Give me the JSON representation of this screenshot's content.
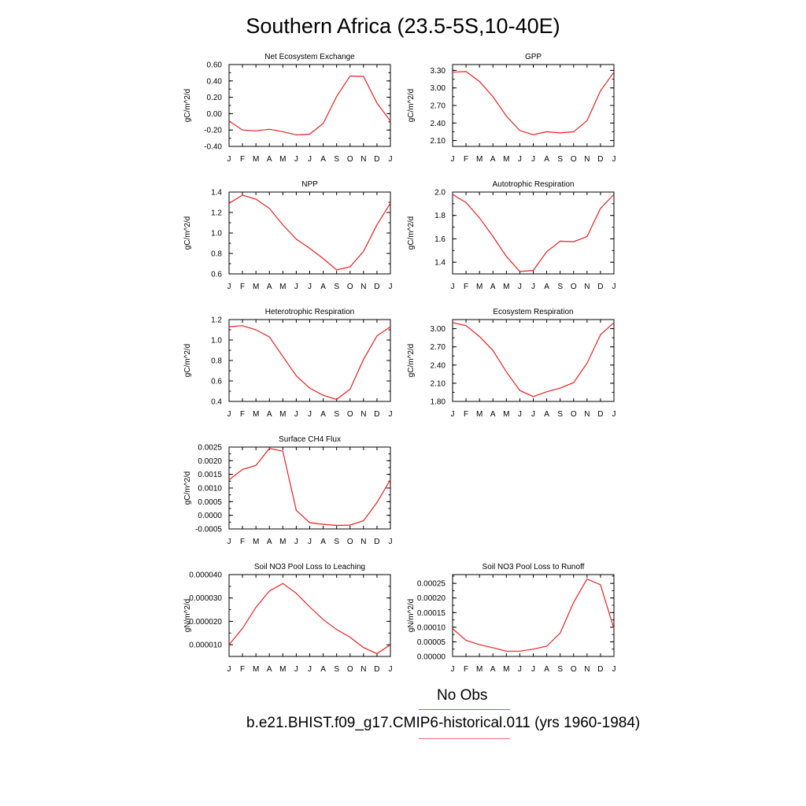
{
  "title": "Southern Africa (23.5-5S,10-40E)",
  "months": [
    "J",
    "F",
    "M",
    "A",
    "M",
    "J",
    "J",
    "A",
    "S",
    "O",
    "N",
    "D",
    "J"
  ],
  "legend": [
    {
      "label": "No Obs",
      "color": "#6d6df0"
    },
    {
      "label": "b.e21.BHIST.f09_g17.CMIP6-historical.011 (yrs 1960-1984)",
      "color": "#f06d6d"
    }
  ],
  "series_color": "#e82020",
  "chart_data": [
    {
      "type": "line",
      "title": "Net Ecosystem Exchange",
      "ylabel": "gC/m^2/d",
      "ylim": [
        -0.4,
        0.6
      ],
      "yticks": [
        -0.4,
        -0.2,
        0.0,
        0.2,
        0.4,
        0.6
      ],
      "ytick_labels": [
        "-0.40",
        "-0.20",
        "0.00",
        "0.20",
        "0.40",
        "0.60"
      ],
      "values": [
        -0.09,
        -0.2,
        -0.21,
        -0.19,
        -0.22,
        -0.26,
        -0.25,
        -0.12,
        0.21,
        0.46,
        0.455,
        0.13,
        -0.09
      ]
    },
    {
      "type": "line",
      "title": "GPP",
      "ylabel": "gC/m^2/d",
      "ylim": [
        2.0,
        3.4
      ],
      "yticks": [
        2.1,
        2.4,
        2.7,
        3.0,
        3.3
      ],
      "ytick_labels": [
        "2.10",
        "2.40",
        "2.70",
        "3.00",
        "3.30"
      ],
      "values": [
        3.27,
        3.28,
        3.11,
        2.85,
        2.52,
        2.27,
        2.2,
        2.25,
        2.23,
        2.25,
        2.44,
        2.95,
        3.27
      ]
    },
    {
      "type": "line",
      "title": "NPP",
      "ylabel": "gC/m^2/d",
      "ylim": [
        0.6,
        1.4
      ],
      "yticks": [
        0.6,
        0.8,
        1.0,
        1.2,
        1.4
      ],
      "ytick_labels": [
        "0.6",
        "0.8",
        "1.0",
        "1.2",
        "1.4"
      ],
      "values": [
        1.29,
        1.37,
        1.33,
        1.24,
        1.08,
        0.94,
        0.85,
        0.75,
        0.64,
        0.67,
        0.82,
        1.08,
        1.29
      ]
    },
    {
      "type": "line",
      "title": "Autotrophic Respiration",
      "ylabel": "gC/m^2/d",
      "ylim": [
        1.3,
        2.0
      ],
      "yticks": [
        1.4,
        1.6,
        1.8,
        2.0
      ],
      "ytick_labels": [
        "1.4",
        "1.6",
        "1.8",
        "2.0"
      ],
      "values": [
        1.98,
        1.91,
        1.78,
        1.62,
        1.45,
        1.32,
        1.33,
        1.49,
        1.58,
        1.575,
        1.62,
        1.86,
        1.98
      ]
    },
    {
      "type": "line",
      "title": "Heterotrophic Respiration",
      "ylabel": "gC/m^2/d",
      "ylim": [
        0.4,
        1.2
      ],
      "yticks": [
        0.4,
        0.6,
        0.8,
        1.0,
        1.2
      ],
      "ytick_labels": [
        "0.4",
        "0.6",
        "0.8",
        "1.0",
        "1.2"
      ],
      "values": [
        1.13,
        1.14,
        1.1,
        1.03,
        0.84,
        0.65,
        0.53,
        0.46,
        0.42,
        0.52,
        0.81,
        1.04,
        1.13
      ]
    },
    {
      "type": "line",
      "title": "Ecosystem Respiration",
      "ylabel": "gC/m^2/d",
      "ylim": [
        1.8,
        3.15
      ],
      "yticks": [
        1.8,
        2.1,
        2.4,
        2.7,
        3.0
      ],
      "ytick_labels": [
        "1.80",
        "2.10",
        "2.40",
        "2.70",
        "3.00"
      ],
      "values": [
        3.1,
        3.05,
        2.87,
        2.64,
        2.29,
        1.98,
        1.88,
        1.96,
        2.02,
        2.11,
        2.43,
        2.9,
        3.1
      ]
    },
    {
      "type": "line",
      "title": "Surface CH4 Flux",
      "ylabel": "gC/m^2/d",
      "ylim": [
        -0.0005,
        0.0025
      ],
      "yticks": [
        -0.0005,
        0.0,
        0.0005,
        0.001,
        0.0015,
        0.002,
        0.0025
      ],
      "ytick_labels": [
        "-0.0005",
        "0.0000",
        "0.0005",
        "0.0010",
        "0.0015",
        "0.0020",
        "0.0025"
      ],
      "values": [
        0.0013,
        0.00168,
        0.00183,
        0.00245,
        0.00235,
        0.00018,
        -0.00027,
        -0.00033,
        -0.00037,
        -0.00036,
        -0.0002,
        0.00047,
        0.0013
      ]
    },
    {
      "type": "line",
      "title": "Soil NO3 Pool Loss to Leaching",
      "ylabel": "gN/m^2/d",
      "ylim": [
        5e-06,
        4e-05
      ],
      "yticks": [
        1e-05,
        2e-05,
        3e-05,
        4e-05
      ],
      "ytick_labels": [
        "0.000010",
        "0.000020",
        "0.000030",
        "0.000040"
      ],
      "values": [
        1e-05,
        1.7e-05,
        2.6e-05,
        3.3e-05,
        3.62e-05,
        3.2e-05,
        2.62e-05,
        2.08e-05,
        1.65e-05,
        1.32e-05,
        8.8e-06,
        6.2e-06,
        1e-05
      ]
    },
    {
      "type": "line",
      "title": "Soil NO3 Pool Loss to Runoff",
      "ylabel": "gN/m^2/d",
      "ylim": [
        0.0,
        0.00028
      ],
      "yticks": [
        0.0,
        5e-05,
        0.0001,
        0.00015,
        0.0002,
        0.00025
      ],
      "ytick_labels": [
        "0.00000",
        "0.00005",
        "0.00010",
        "0.00015",
        "0.00020",
        "0.00025"
      ],
      "values": [
        9.5e-05,
        5.5e-05,
        4e-05,
        3e-05,
        1.8e-05,
        1.8e-05,
        2.5e-05,
        3.5e-05,
        8e-05,
        0.000185,
        0.000265,
        0.000245,
        9.5e-05
      ]
    }
  ]
}
